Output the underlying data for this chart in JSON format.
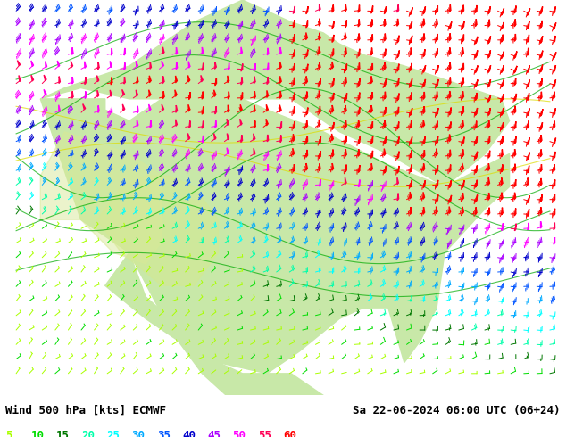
{
  "title_left": "Wind 500 hPa [kts] ECMWF",
  "title_right": "Sa 22-06-2024 06:00 UTC (06+24)",
  "legend_values": [
    5,
    10,
    15,
    20,
    25,
    30,
    35,
    40,
    45,
    50,
    55,
    60
  ],
  "legend_colors": [
    "#aaff00",
    "#00dd00",
    "#007700",
    "#00ffaa",
    "#00ffff",
    "#00aaff",
    "#0055ff",
    "#0000cc",
    "#aa00ff",
    "#ff00ff",
    "#ff0055",
    "#ff0000"
  ],
  "figsize": [
    6.34,
    4.9
  ],
  "dpi": 100,
  "bottom_bg": "#ffffff",
  "map_land_color": "#c8e8b0",
  "map_water_color": "#a0c8e8",
  "contour_color": "#00cc00",
  "text_fontsize": 9,
  "legend_fontsize": 9
}
